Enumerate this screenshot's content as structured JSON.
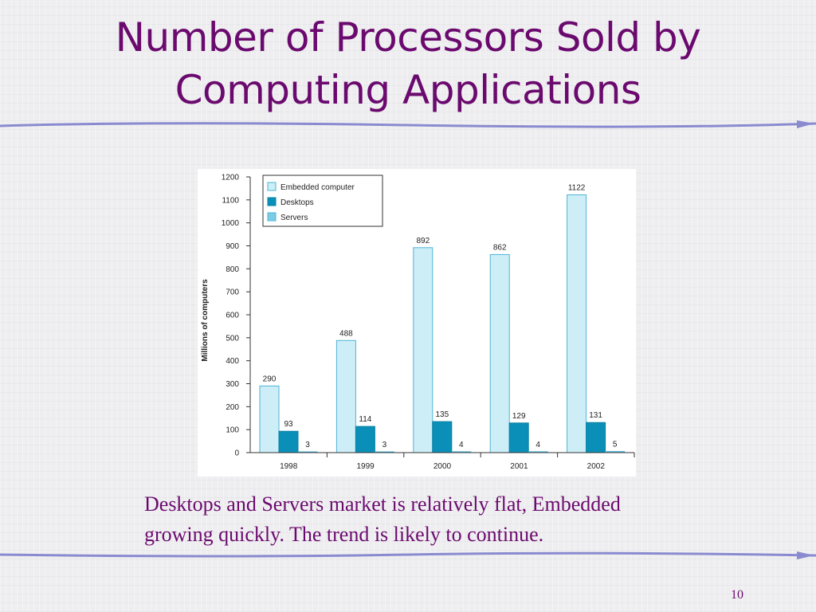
{
  "slide": {
    "title_line1": "Number of Processors Sold by",
    "title_line2": "Computing Applications",
    "caption_line1": "Desktops and Servers market is relatively flat, Embedded",
    "caption_line2": "growing quickly. The trend is likely to continue.",
    "page_number": "10",
    "text_color": "#6b0a6e",
    "rule_color": "#8a8ad0"
  },
  "chart_data": {
    "type": "bar",
    "title": "",
    "xlabel": "",
    "ylabel": "Millions of computers",
    "ylim": [
      0,
      1200
    ],
    "yticks": [
      0,
      100,
      200,
      300,
      400,
      500,
      600,
      700,
      800,
      900,
      1000,
      1100,
      1200
    ],
    "categories": [
      "1998",
      "1999",
      "2000",
      "2001",
      "2002"
    ],
    "series": [
      {
        "name": "Embedded computer",
        "values": [
          290,
          488,
          892,
          862,
          1122
        ],
        "labels": [
          "290",
          "488",
          "892",
          "862",
          "1122"
        ],
        "color": "#cdeef7",
        "stroke": "#4fb3d6"
      },
      {
        "name": "Desktops",
        "values": [
          93,
          114,
          135,
          129,
          131
        ],
        "labels": [
          "93",
          "114",
          "135",
          "129",
          "131"
        ],
        "color": "#0a90b8",
        "stroke": "#0a7fa3"
      },
      {
        "name": "Servers",
        "values": [
          3,
          3,
          4,
          4,
          5
        ],
        "labels": [
          "3",
          "3",
          "4",
          "4",
          "5"
        ],
        "color": "#7ccde4",
        "stroke": "#4fb3d6"
      }
    ],
    "legend": "top-left",
    "grid": false
  }
}
